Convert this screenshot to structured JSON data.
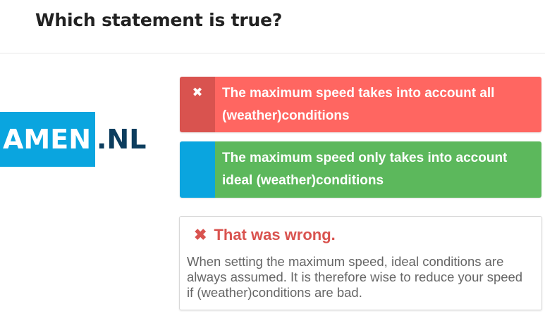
{
  "question": {
    "title": "Which statement is true?"
  },
  "logo": {
    "highlight_text": "AMEN",
    "suffix_text": ".NL"
  },
  "answers": [
    {
      "marker_icon": "close-icon",
      "marker_glyph": "✖",
      "text": "The maximum speed takes into account all (weather)conditions",
      "state": "wrong-selected"
    },
    {
      "marker_icon": "",
      "marker_glyph": "",
      "text": "The maximum speed only takes into account ideal (weather)conditions",
      "state": "correct"
    }
  ],
  "feedback": {
    "icon": "close-icon",
    "icon_glyph": "✖",
    "title": "That was wrong.",
    "body": "When setting the maximum speed, ideal conditions are always assumed. It is therefore wise to reduce your speed if (weather)conditions are bad."
  },
  "colors": {
    "wrong_marker": "#d9534f",
    "wrong_bg": "#ff6661",
    "correct_marker": "#0aa5df",
    "correct_bg": "#5cb85c",
    "logo_blue": "#0aa5df",
    "logo_dark": "#0c3d5e"
  }
}
